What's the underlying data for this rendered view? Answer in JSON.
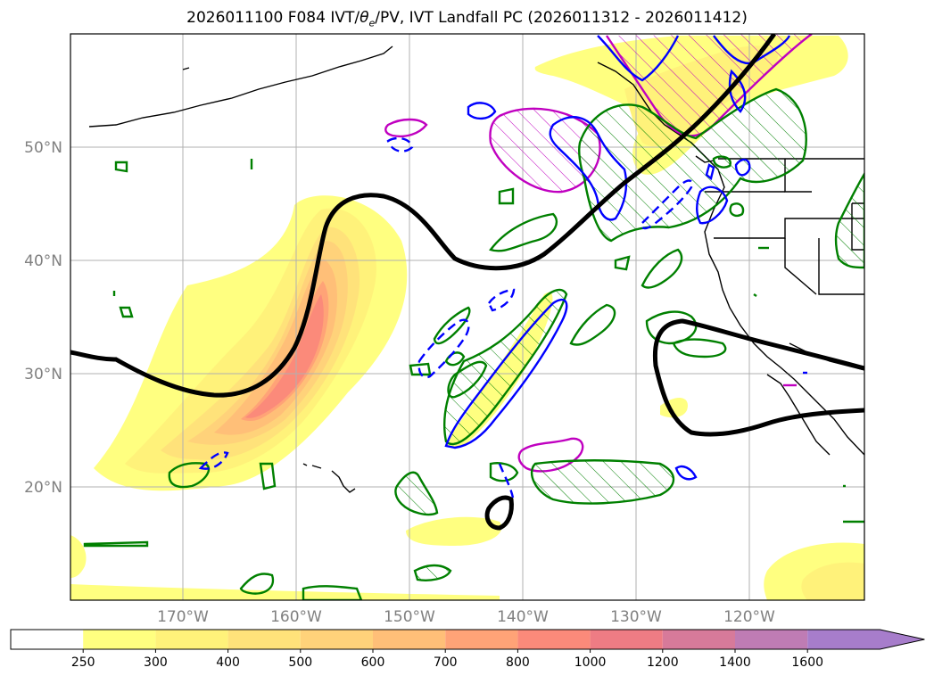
{
  "title": {
    "run": "2026011100 F084 IVT/",
    "theta": "θ",
    "theta_sub": "e",
    "rest": "/PV, IVT Landfall PC (2026011312 - 2026011412)"
  },
  "map": {
    "lat_labels": [
      "50°N",
      "40°N",
      "30°N",
      "20°N"
    ],
    "lon_labels": [
      "170°W",
      "160°W",
      "150°W",
      "140°W",
      "130°W",
      "120°W"
    ],
    "grid": true
  },
  "colorbar": {
    "ticks": [
      "250",
      "300",
      "400",
      "500",
      "600",
      "700",
      "800",
      "1000",
      "1200",
      "1400",
      "1600"
    ],
    "colors": [
      "#ffff80",
      "#fff27a",
      "#ffe27a",
      "#ffd27a",
      "#ffbf78",
      "#ffa377",
      "#fb8a7a",
      "#ee7c84",
      "#d77a9a",
      "#bf7cb4",
      "#a77dcb"
    ],
    "extend": "max"
  },
  "overlays": {
    "pv_contour_color": "#000000",
    "green_contour_color": "#008000",
    "blue_contour_color": "#0000ff",
    "magenta_contour_color": "#c000c0"
  }
}
